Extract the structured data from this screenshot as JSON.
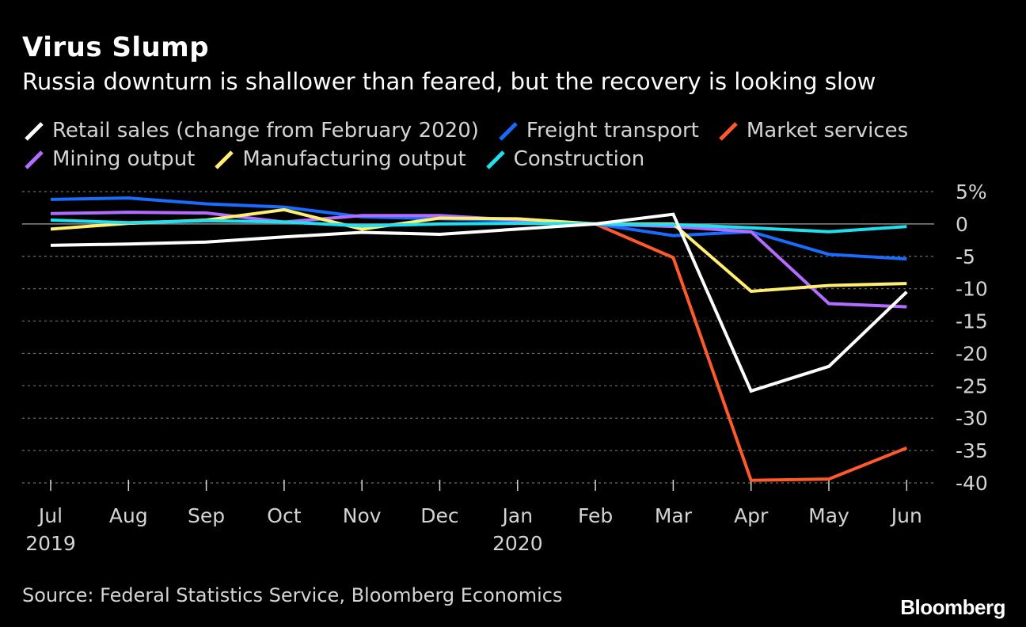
{
  "header": {
    "title": "Virus Slump",
    "subtitle": "Russia downturn is shallower than feared, but the recovery is looking slow"
  },
  "footer": {
    "source": "Source: Federal Statistics Service, Bloomberg Economics",
    "brand": "Bloomberg"
  },
  "chart_data": {
    "type": "line",
    "title": "Virus Slump",
    "subtitle": "Russia downturn is shallower than feared, but the recovery is looking slow",
    "categories": [
      "Jul",
      "Aug",
      "Sep",
      "Oct",
      "Nov",
      "Dec",
      "Jan",
      "Feb",
      "Mar",
      "Apr",
      "May",
      "Jun"
    ],
    "year_labels": [
      "2019",
      "",
      "",
      "",
      "",
      "",
      "2020",
      "",
      "",
      "",
      "",
      ""
    ],
    "ylim": [
      -40,
      5
    ],
    "yticks": [
      5,
      0,
      -5,
      -10,
      -15,
      -20,
      -25,
      -30,
      -35,
      -40
    ],
    "ytick_labels": [
      "5%",
      "0",
      "-5",
      "-10",
      "-15",
      "-20",
      "-25",
      "-30",
      "-35",
      "-40"
    ],
    "grid": true,
    "legend_position": "top",
    "series": [
      {
        "name": "Retail sales (change from February 2020)",
        "color": "#ffffff",
        "values": [
          -3.3,
          -3.1,
          -2.8,
          -2.0,
          -1.3,
          -1.6,
          -0.8,
          0.0,
          1.5,
          -25.8,
          -22.0,
          -10.5
        ]
      },
      {
        "name": "Freight transport",
        "color": "#1a6cff",
        "values": [
          3.8,
          4.0,
          3.1,
          2.6,
          1.1,
          0.8,
          0.5,
          0.0,
          -1.8,
          -1.2,
          -4.7,
          -5.4
        ]
      },
      {
        "name": "Market services",
        "color": "#ff5a2c",
        "values": [
          null,
          null,
          null,
          null,
          null,
          null,
          null,
          0.0,
          -5.2,
          -39.6,
          -39.4,
          -34.6
        ]
      },
      {
        "name": "Mining output",
        "color": "#b36cff",
        "values": [
          1.6,
          1.8,
          1.7,
          0.3,
          1.3,
          1.3,
          0.6,
          0.0,
          -0.4,
          -1.2,
          -12.3,
          -12.8
        ]
      },
      {
        "name": "Manufacturing output",
        "color": "#ffee70",
        "values": [
          -0.8,
          0.1,
          0.6,
          2.2,
          -0.8,
          0.9,
          0.8,
          0.0,
          0.0,
          -10.4,
          -9.5,
          -9.2
        ]
      },
      {
        "name": "Construction",
        "color": "#1ee0f0",
        "values": [
          0.6,
          0.2,
          0.5,
          0.3,
          -0.3,
          0.0,
          0.1,
          0.0,
          -0.1,
          -0.6,
          -1.2,
          -0.4
        ]
      }
    ]
  }
}
